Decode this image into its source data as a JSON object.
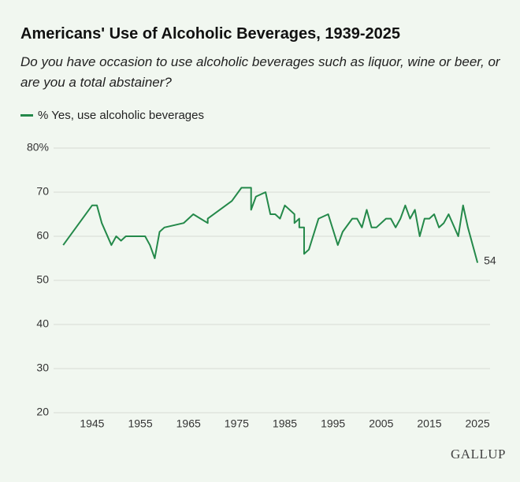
{
  "chart_data": {
    "type": "line",
    "title": "Americans' Use of Alcoholic Beverages, 1939-2025",
    "subtitle": "Do you have occasion to use alcoholic beverages such as liquor, wine or beer, or are you a total abstainer?",
    "source": "GALLUP",
    "x": [
      1939,
      1945,
      1946,
      1947,
      1949,
      1950,
      1951,
      1952,
      1956,
      1957,
      1958,
      1959,
      1960,
      1964,
      1966,
      1969,
      1969,
      1974,
      1976,
      1977,
      1978,
      1978,
      1979,
      1981,
      1982,
      1983,
      1984,
      1985,
      1987,
      1987,
      1988,
      1988,
      1989,
      1989,
      1990,
      1992,
      1994,
      1996,
      1997,
      1999,
      2000,
      2001,
      2002,
      2003,
      2004,
      2006,
      2007,
      2008,
      2009,
      2010,
      2011,
      2012,
      2013,
      2014,
      2015,
      2016,
      2017,
      2018,
      2019,
      2021,
      2022,
      2023,
      2025
    ],
    "series": [
      {
        "name": "% Yes, use alcoholic beverages",
        "color": "#24894a",
        "values": [
          58,
          67,
          67,
          63,
          58,
          60,
          59,
          60,
          60,
          58,
          55,
          61,
          62,
          63,
          65,
          63,
          64,
          68,
          71,
          71,
          71,
          66,
          69,
          70,
          65,
          65,
          64,
          67,
          65,
          63,
          64,
          62,
          62,
          56,
          57,
          64,
          65,
          58,
          61,
          64,
          64,
          62,
          66,
          62,
          62,
          64,
          64,
          62,
          64,
          67,
          64,
          66,
          60,
          64,
          64,
          65,
          62,
          63,
          65,
          60,
          67,
          62,
          54
        ]
      }
    ],
    "xlim": [
      1937,
      2027.6
    ],
    "xticks": [
      1945,
      1955,
      1965,
      1975,
      1985,
      1995,
      2005,
      2015,
      2025
    ],
    "ylim": [
      20,
      80
    ],
    "yticks": [
      20,
      30,
      40,
      50,
      60,
      70,
      {
        "value": 80,
        "label": "80%"
      }
    ],
    "grid": true
  }
}
